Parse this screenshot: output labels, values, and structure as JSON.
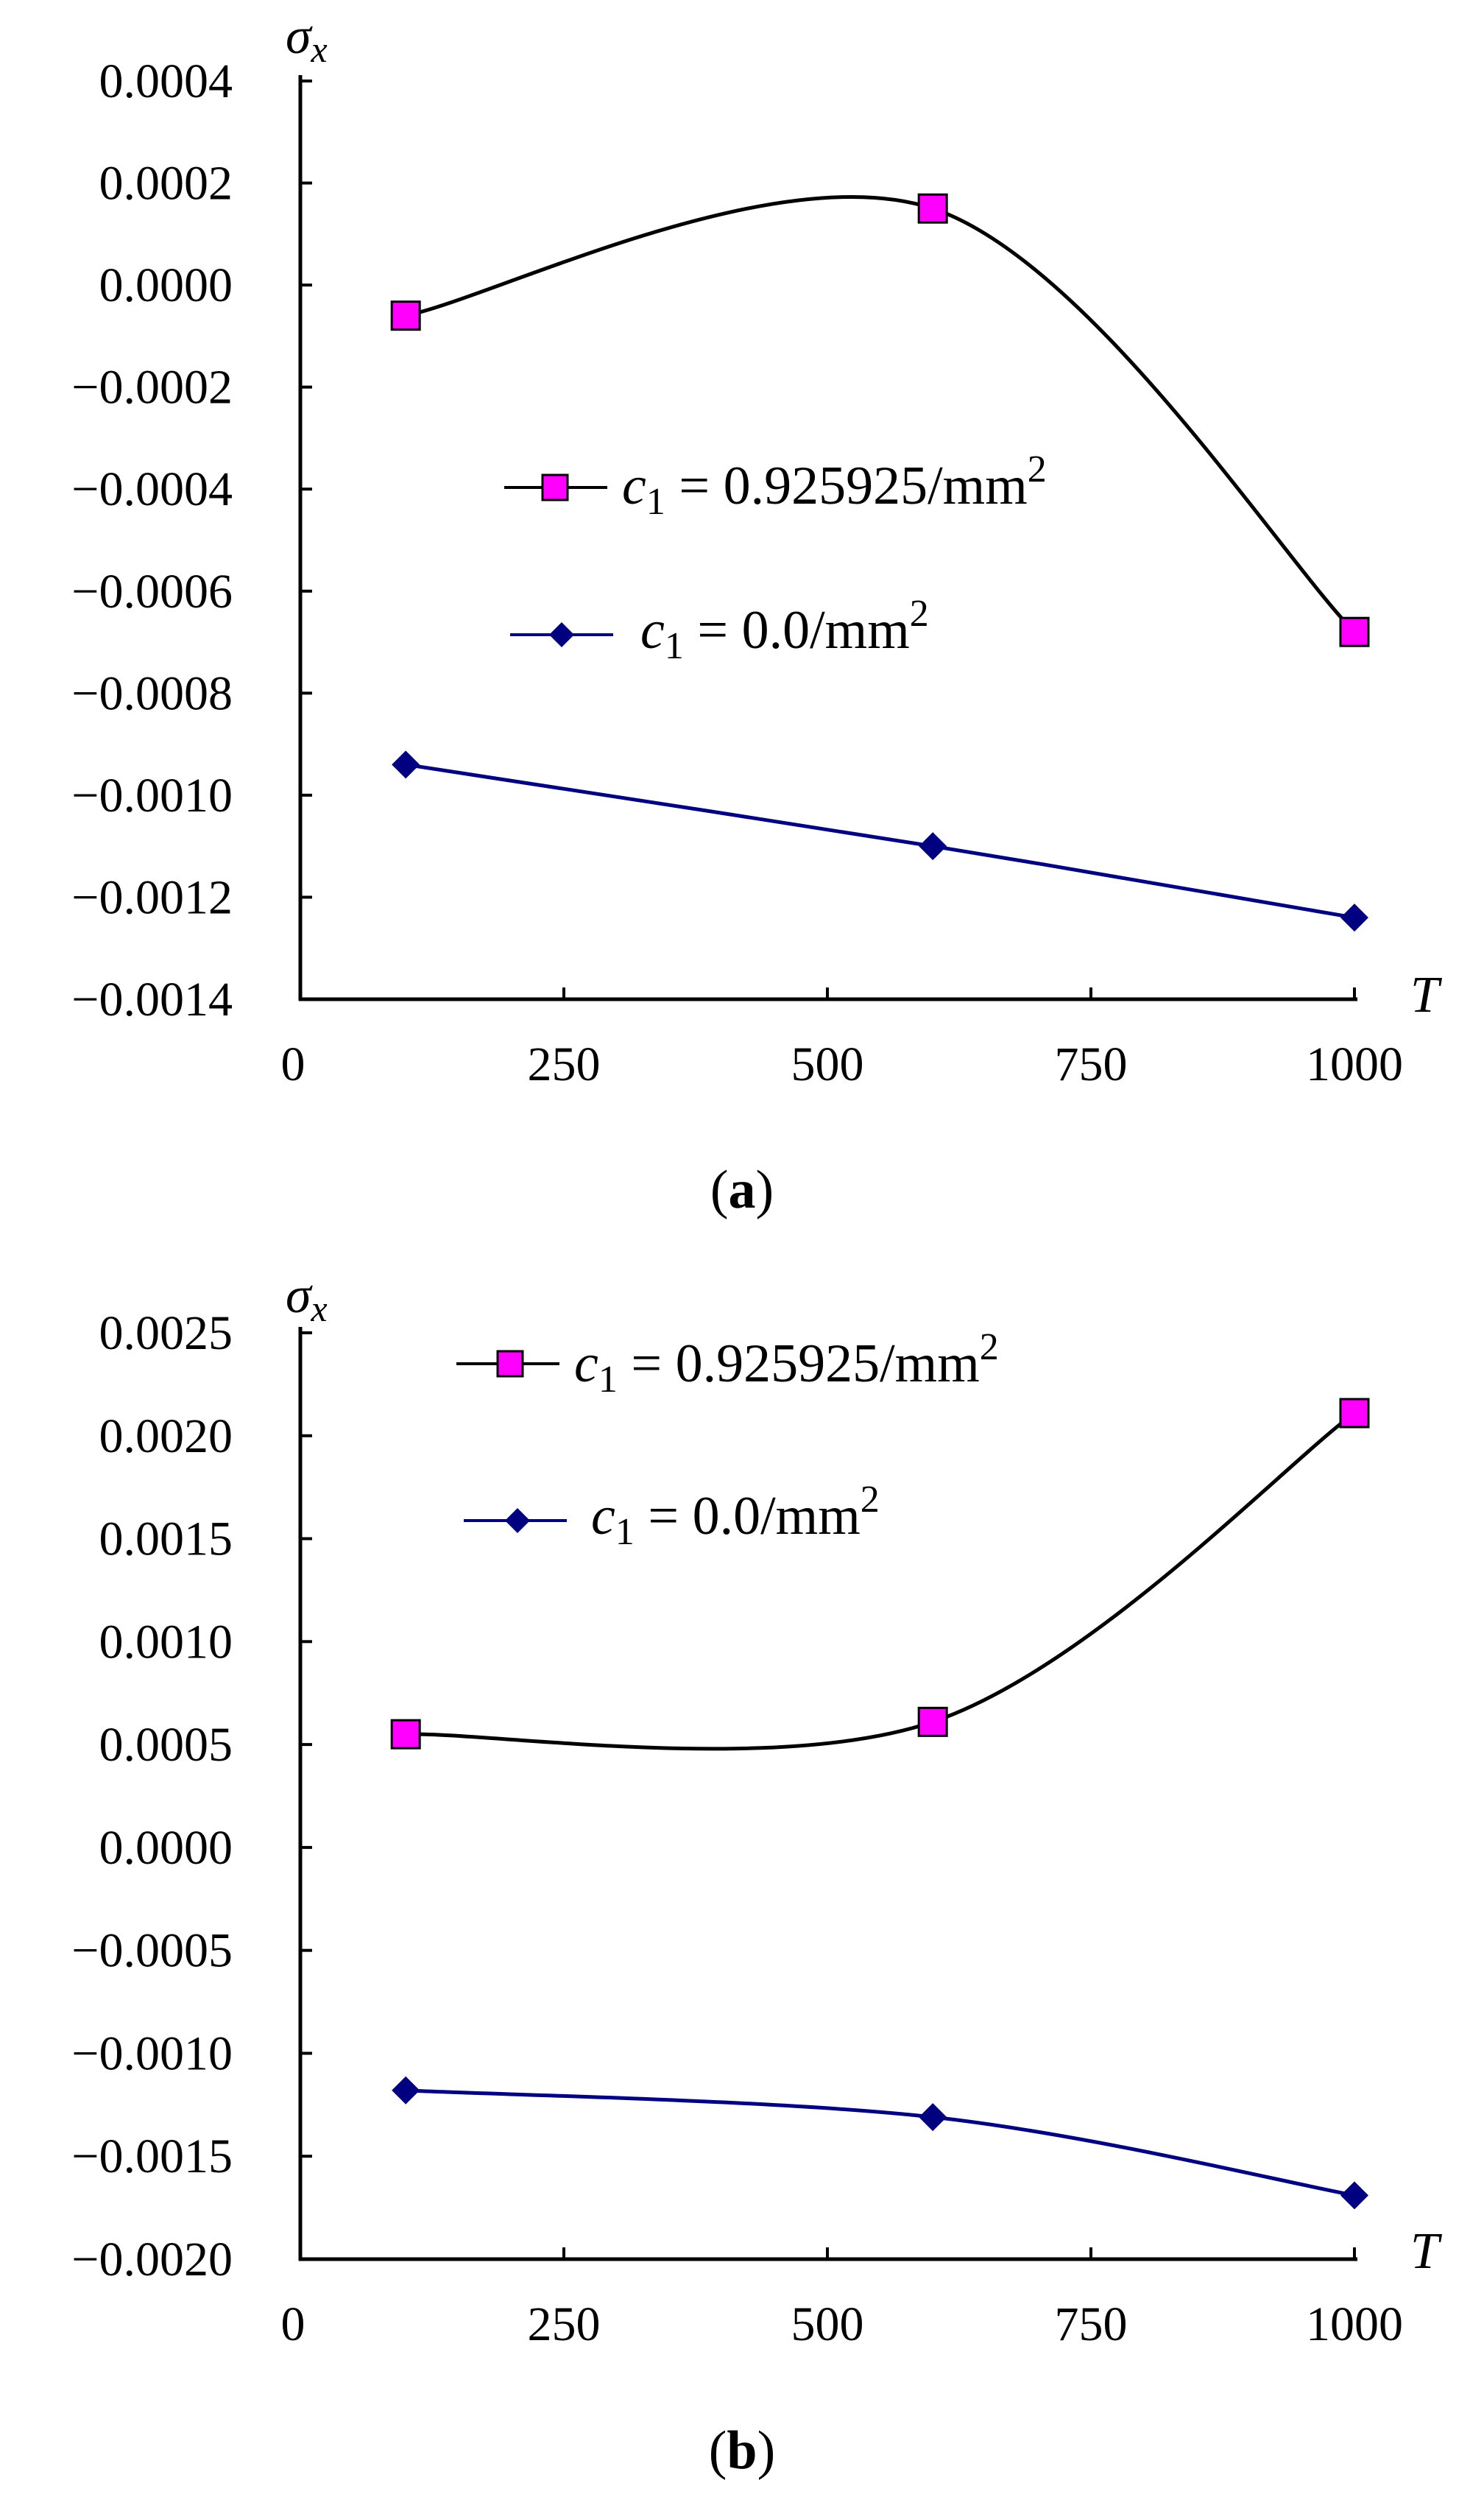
{
  "chart_data": [
    {
      "type": "line",
      "caption_letter": "a",
      "caption_open": "(",
      "caption_close": ")",
      "ylabel_symbol": "σ",
      "ylabel_subscript": "x",
      "xlabel": "T",
      "xlim": [
        0,
        1000
      ],
      "ylim": [
        -0.0014,
        0.0004
      ],
      "xticks": [
        "0",
        "250",
        "500",
        "750",
        "1000"
      ],
      "yticks": [
        "0.0004",
        "0.0002",
        "0.0000",
        "−0.0002",
        "−0.0004",
        "−0.0006",
        "−0.0008",
        "−0.0010",
        "−0.0012",
        "−0.0014"
      ],
      "series": [
        {
          "name": "c1 = 0.925925/mm2",
          "legend_var": "c",
          "legend_sub": "1",
          "legend_eq": " = 0.925925/mm",
          "legend_sup": "2",
          "color": "#000000",
          "marker_color": "#ff00ff",
          "marker": "square",
          "x": [
            100,
            600,
            1000
          ],
          "y": [
            -6e-05,
            0.00015,
            -0.00068
          ]
        },
        {
          "name": "c1 = 0.0/mm2",
          "legend_var": "c",
          "legend_sub": "1",
          "legend_eq": " = 0.0/mm",
          "legend_sup": "2",
          "color": "#000080",
          "marker_color": "#000080",
          "marker": "diamond",
          "x": [
            100,
            600,
            1000
          ],
          "y": [
            -0.00094,
            -0.0011,
            -0.00124
          ]
        }
      ]
    },
    {
      "type": "line",
      "caption_letter": "b",
      "caption_open": "(",
      "caption_close": ")",
      "ylabel_symbol": "σ",
      "ylabel_subscript": "x",
      "xlabel": "T",
      "xlim": [
        0,
        1000
      ],
      "ylim": [
        -0.002,
        0.0025
      ],
      "xticks": [
        "0",
        "250",
        "500",
        "750",
        "1000"
      ],
      "yticks": [
        "0.0025",
        "0.0020",
        "0.0015",
        "0.0010",
        "0.0005",
        "0.0000",
        "−0.0005",
        "−0.0010",
        "−0.0015",
        "−0.0020"
      ],
      "series": [
        {
          "name": "c1 = 0.925925/mm2",
          "legend_var": "c",
          "legend_sub": "1",
          "legend_eq": " = 0.925925/mm",
          "legend_sup": "2",
          "color": "#000000",
          "marker_color": "#ff00ff",
          "marker": "square",
          "x": [
            100,
            600,
            1000
          ],
          "y": [
            0.00055,
            0.00061,
            0.00211
          ]
        },
        {
          "name": "c1 = 0.0/mm2",
          "legend_var": "c",
          "legend_sub": "1",
          "legend_eq": " = 0.0/mm",
          "legend_sup": "2",
          "color": "#000080",
          "marker_color": "#000080",
          "marker": "diamond",
          "x": [
            100,
            600,
            1000
          ],
          "y": [
            -0.00118,
            -0.00131,
            -0.00169
          ]
        }
      ]
    }
  ]
}
